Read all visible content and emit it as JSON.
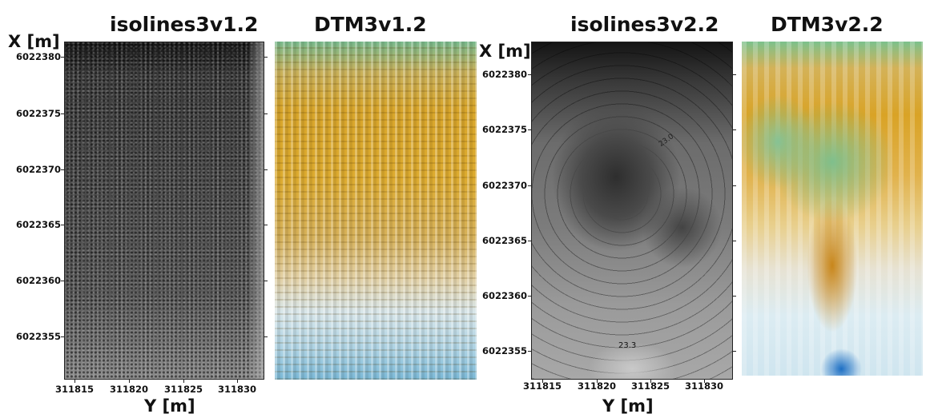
{
  "panels": [
    {
      "title": "isolines3v1.2",
      "type": "contour-map"
    },
    {
      "title": "DTM3v1.2",
      "type": "terrain-map"
    },
    {
      "title": "isolines3v2.2",
      "type": "contour-map"
    },
    {
      "title": "DTM3v2.2",
      "type": "terrain-map"
    }
  ],
  "axes": {
    "x_label": "X [m]",
    "y_label": "Y [m]",
    "x_ticks": [
      "6022380",
      "6022375",
      "6022370",
      "6022365",
      "6022360",
      "6022355"
    ],
    "y_ticks": [
      "311815",
      "311820",
      "311825",
      "311830"
    ]
  },
  "contour_label_v2": "23.3",
  "colors": {
    "dtm_high": "#78b98c",
    "dtm_mid": "#d8a52a",
    "dtm_low": "#7ab8d6",
    "iso_dark": "#141414",
    "iso_light": "#a8a8a8"
  }
}
